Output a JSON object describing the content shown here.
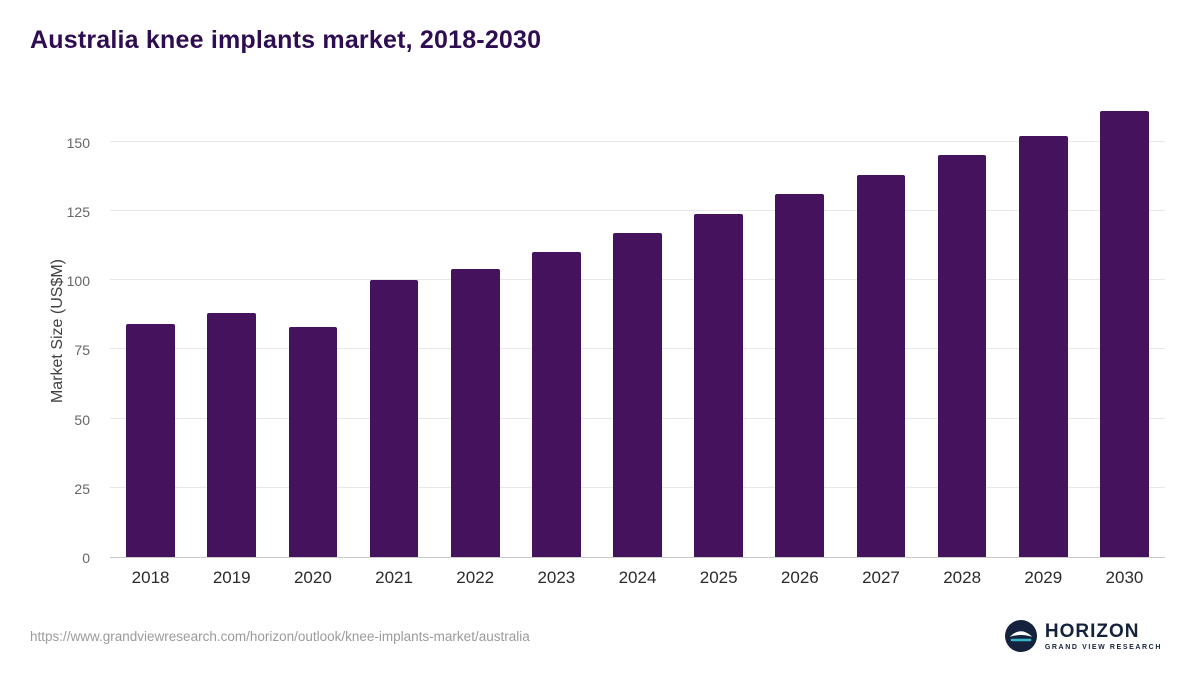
{
  "title": "Australia knee implants market, 2018-2030",
  "source_url": "https://www.grandviewresearch.com/horizon/outlook/knee-implants-market/australia",
  "logo": {
    "name": "HORIZON",
    "subtitle": "GRAND VIEW RESEARCH",
    "icon": "horizon-circle-icon",
    "navy": "#15223d",
    "teal": "#35b6c9"
  },
  "chart_data": {
    "type": "bar",
    "title": "Australia knee implants market, 2018-2030",
    "categories": [
      "2018",
      "2019",
      "2020",
      "2021",
      "2022",
      "2023",
      "2024",
      "2025",
      "2026",
      "2027",
      "2028",
      "2029",
      "2030"
    ],
    "values": [
      84,
      88,
      83,
      100,
      104,
      110,
      117,
      124,
      131,
      138,
      145,
      152,
      161
    ],
    "xlabel": "",
    "ylabel": "Market Size (US$M)",
    "ylim": [
      0,
      165
    ],
    "yticks": [
      0,
      25,
      50,
      75,
      100,
      125,
      150
    ],
    "bar_color": "#45125e",
    "grid": true,
    "legend_position": "none"
  }
}
